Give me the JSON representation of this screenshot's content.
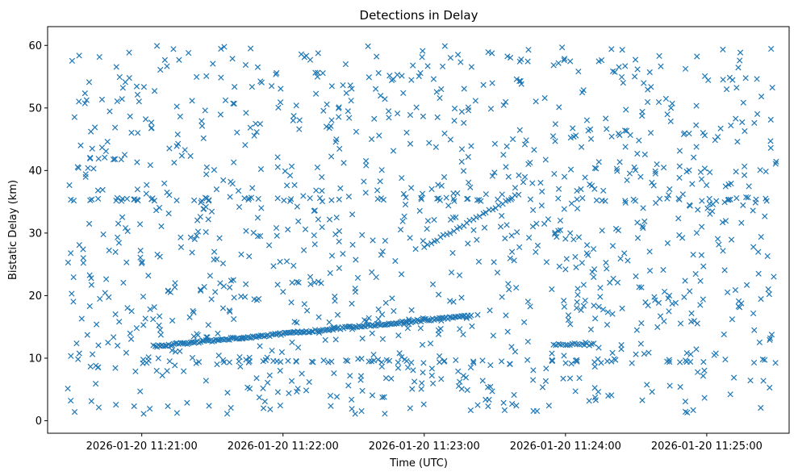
{
  "chart_data": {
    "type": "scatter",
    "title": "Detections in Delay",
    "xlabel": "Time (UTC)",
    "ylabel": "Bistatic Delay (km)",
    "marker": "x",
    "color": "#1f77b4",
    "xlim": [
      "2026-01-20 11:20:20",
      "2026-01-20 11:25:35"
    ],
    "ylim": [
      -2,
      63
    ],
    "xticks": [
      "2026-01-20 11:21:00",
      "2026-01-20 11:22:00",
      "2026-01-20 11:23:00",
      "2026-01-20 11:24:00",
      "2026-01-20 11:25:00"
    ],
    "yticks": [
      0,
      10,
      20,
      30,
      40,
      50,
      60
    ],
    "grid": false,
    "track_1": {
      "x_start": "2026-01-20 11:21:05",
      "x_end": "2026-01-20 11:23:20",
      "y_start": 11.9,
      "y_end": 16.8,
      "count": 190
    },
    "track_2": {
      "x_start": "2026-01-20 11:23:00",
      "x_end": "2026-01-20 11:23:40",
      "y_start": 27.8,
      "y_end": 36.2,
      "count": 30
    },
    "clutter_line_1": {
      "y": 12.2,
      "x_start": "2026-01-20 11:23:55",
      "x_end": "2026-01-20 11:24:12",
      "count": 18
    },
    "clutter_line_2": {
      "y": 35.4,
      "x_start": "2026-01-20 11:20:30",
      "x_end": "2026-01-20 11:25:30",
      "count": 70
    },
    "clutter_line_3": {
      "y": 9.5,
      "x_start": "2026-01-20 11:21:00",
      "x_end": "2026-01-20 11:25:30",
      "count": 60
    },
    "noise": {
      "x_start": "2026-01-20 11:20:28",
      "x_end": "2026-01-20 11:25:30",
      "y_min": 1,
      "y_max": 60,
      "count": 1150
    }
  }
}
